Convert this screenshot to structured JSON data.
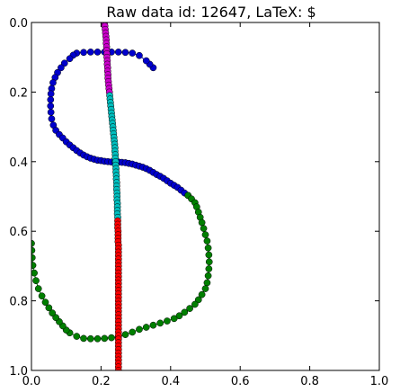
{
  "chart_data": {
    "type": "scatter",
    "title": "Raw data id: 12647, LaTeX: $",
    "xlabel": "",
    "ylabel": "",
    "xlim": [
      0.0,
      1.0
    ],
    "ylim": [
      0.0,
      1.0
    ],
    "y_inverted": true,
    "grid": false,
    "x_ticks": [
      {
        "value": 0.0,
        "label": "0.0"
      },
      {
        "value": 0.2,
        "label": "0.2"
      },
      {
        "value": 0.4,
        "label": "0.4"
      },
      {
        "value": 0.6,
        "label": "0.6"
      },
      {
        "value": 0.8,
        "label": "0.8"
      },
      {
        "value": 1.0,
        "label": "1.0"
      }
    ],
    "y_ticks": [
      {
        "value": 0.0,
        "label": "0.0"
      },
      {
        "value": 0.2,
        "label": "0.2"
      },
      {
        "value": 0.4,
        "label": "0.4"
      },
      {
        "value": 0.6,
        "label": "0.6"
      },
      {
        "value": 0.8,
        "label": "0.8"
      },
      {
        "value": 1.0,
        "label": "1.0"
      }
    ],
    "series": [
      {
        "color": "#0000cc",
        "points": [
          [
            0.35,
            0.13
          ],
          [
            0.34,
            0.12
          ],
          [
            0.33,
            0.11
          ],
          [
            0.31,
            0.095
          ],
          [
            0.29,
            0.088
          ],
          [
            0.27,
            0.086
          ],
          [
            0.25,
            0.085
          ],
          [
            0.23,
            0.085
          ],
          [
            0.21,
            0.085
          ],
          [
            0.19,
            0.085
          ],
          [
            0.17,
            0.085
          ],
          [
            0.15,
            0.086
          ],
          [
            0.13,
            0.088
          ],
          [
            0.12,
            0.094
          ],
          [
            0.11,
            0.104
          ],
          [
            0.095,
            0.117
          ],
          [
            0.085,
            0.13
          ],
          [
            0.075,
            0.144
          ],
          [
            0.068,
            0.158
          ],
          [
            0.062,
            0.173
          ],
          [
            0.058,
            0.19
          ],
          [
            0.056,
            0.205
          ],
          [
            0.055,
            0.222
          ],
          [
            0.055,
            0.24
          ],
          [
            0.056,
            0.258
          ],
          [
            0.058,
            0.277
          ],
          [
            0.063,
            0.295
          ],
          [
            0.07,
            0.31
          ],
          [
            0.08,
            0.322
          ],
          [
            0.09,
            0.332
          ],
          [
            0.1,
            0.343
          ],
          [
            0.11,
            0.352
          ],
          [
            0.12,
            0.36
          ],
          [
            0.13,
            0.368
          ],
          [
            0.14,
            0.375
          ],
          [
            0.15,
            0.381
          ],
          [
            0.16,
            0.386
          ],
          [
            0.17,
            0.39
          ],
          [
            0.18,
            0.393
          ],
          [
            0.19,
            0.396
          ],
          [
            0.2,
            0.397
          ],
          [
            0.21,
            0.399
          ],
          [
            0.22,
            0.4
          ],
          [
            0.23,
            0.401
          ],
          [
            0.24,
            0.401
          ],
          [
            0.25,
            0.401
          ],
          [
            0.26,
            0.402
          ],
          [
            0.27,
            0.403
          ],
          [
            0.28,
            0.405
          ],
          [
            0.29,
            0.407
          ],
          [
            0.3,
            0.41
          ],
          [
            0.31,
            0.413
          ],
          [
            0.32,
            0.416
          ],
          [
            0.33,
            0.42
          ],
          [
            0.34,
            0.425
          ],
          [
            0.35,
            0.431
          ],
          [
            0.36,
            0.437
          ],
          [
            0.37,
            0.442
          ],
          [
            0.38,
            0.448
          ],
          [
            0.39,
            0.455
          ],
          [
            0.4,
            0.462
          ],
          [
            0.41,
            0.468
          ],
          [
            0.42,
            0.474
          ],
          [
            0.43,
            0.482
          ],
          [
            0.44,
            0.49
          ],
          [
            0.45,
            0.497
          ]
        ]
      },
      {
        "color": "#007f00",
        "points": [
          [
            0.45,
            0.497
          ],
          [
            0.46,
            0.507
          ],
          [
            0.47,
            0.518
          ],
          [
            0.475,
            0.53
          ],
          [
            0.48,
            0.545
          ],
          [
            0.485,
            0.56
          ],
          [
            0.49,
            0.575
          ],
          [
            0.495,
            0.592
          ],
          [
            0.5,
            0.61
          ],
          [
            0.505,
            0.628
          ],
          [
            0.508,
            0.648
          ],
          [
            0.51,
            0.668
          ],
          [
            0.511,
            0.688
          ],
          [
            0.51,
            0.708
          ],
          [
            0.508,
            0.728
          ],
          [
            0.505,
            0.748
          ],
          [
            0.5,
            0.765
          ],
          [
            0.49,
            0.782
          ],
          [
            0.48,
            0.797
          ],
          [
            0.47,
            0.81
          ],
          [
            0.455,
            0.822
          ],
          [
            0.44,
            0.833
          ],
          [
            0.425,
            0.843
          ],
          [
            0.41,
            0.851
          ],
          [
            0.39,
            0.858
          ],
          [
            0.37,
            0.864
          ],
          [
            0.35,
            0.87
          ],
          [
            0.33,
            0.876
          ],
          [
            0.31,
            0.882
          ],
          [
            0.29,
            0.89
          ],
          [
            0.27,
            0.897
          ],
          [
            0.25,
            0.903
          ],
          [
            0.23,
            0.906
          ],
          [
            0.21,
            0.908
          ],
          [
            0.19,
            0.909
          ],
          [
            0.17,
            0.909
          ],
          [
            0.15,
            0.908
          ],
          [
            0.13,
            0.902
          ],
          [
            0.11,
            0.892
          ],
          [
            0.1,
            0.884
          ],
          [
            0.09,
            0.872
          ],
          [
            0.08,
            0.86
          ],
          [
            0.07,
            0.848
          ],
          [
            0.06,
            0.835
          ],
          [
            0.05,
            0.82
          ],
          [
            0.04,
            0.804
          ],
          [
            0.03,
            0.786
          ],
          [
            0.02,
            0.765
          ],
          [
            0.013,
            0.742
          ],
          [
            0.008,
            0.72
          ],
          [
            0.004,
            0.698
          ],
          [
            0.002,
            0.676
          ],
          [
            0.001,
            0.655
          ],
          [
            0.0,
            0.635
          ]
        ]
      },
      {
        "color": "#cc00cc",
        "points": [
          [
            0.21,
            0.0
          ],
          [
            0.211,
            0.01
          ],
          [
            0.212,
            0.02
          ],
          [
            0.213,
            0.03
          ],
          [
            0.214,
            0.04
          ],
          [
            0.215,
            0.05
          ],
          [
            0.215,
            0.06
          ],
          [
            0.216,
            0.07
          ],
          [
            0.216,
            0.08
          ],
          [
            0.217,
            0.09
          ],
          [
            0.217,
            0.1
          ],
          [
            0.218,
            0.11
          ],
          [
            0.218,
            0.12
          ],
          [
            0.219,
            0.13
          ],
          [
            0.219,
            0.14
          ],
          [
            0.22,
            0.15
          ],
          [
            0.22,
            0.16
          ],
          [
            0.221,
            0.17
          ],
          [
            0.222,
            0.18
          ],
          [
            0.223,
            0.19
          ],
          [
            0.224,
            0.2
          ]
        ]
      },
      {
        "color": "#00bfbf",
        "points": [
          [
            0.225,
            0.21
          ],
          [
            0.226,
            0.22
          ],
          [
            0.227,
            0.23
          ],
          [
            0.228,
            0.24
          ],
          [
            0.229,
            0.25
          ],
          [
            0.23,
            0.26
          ],
          [
            0.231,
            0.27
          ],
          [
            0.232,
            0.28
          ],
          [
            0.233,
            0.29
          ],
          [
            0.234,
            0.3
          ],
          [
            0.235,
            0.31
          ],
          [
            0.236,
            0.32
          ],
          [
            0.237,
            0.33
          ],
          [
            0.238,
            0.34
          ],
          [
            0.239,
            0.35
          ],
          [
            0.24,
            0.36
          ],
          [
            0.24,
            0.37
          ],
          [
            0.241,
            0.38
          ],
          [
            0.241,
            0.39
          ],
          [
            0.242,
            0.4
          ],
          [
            0.242,
            0.41
          ],
          [
            0.243,
            0.42
          ],
          [
            0.243,
            0.43
          ],
          [
            0.244,
            0.44
          ],
          [
            0.244,
            0.45
          ],
          [
            0.245,
            0.46
          ],
          [
            0.245,
            0.47
          ],
          [
            0.245,
            0.48
          ],
          [
            0.246,
            0.49
          ],
          [
            0.246,
            0.5
          ],
          [
            0.246,
            0.51
          ],
          [
            0.247,
            0.52
          ],
          [
            0.247,
            0.53
          ],
          [
            0.247,
            0.54
          ],
          [
            0.247,
            0.55
          ],
          [
            0.248,
            0.56
          ]
        ]
      },
      {
        "color": "#ff0000",
        "points": [
          [
            0.248,
            0.57
          ],
          [
            0.248,
            0.58
          ],
          [
            0.248,
            0.59
          ],
          [
            0.249,
            0.6
          ],
          [
            0.249,
            0.61
          ],
          [
            0.249,
            0.62
          ],
          [
            0.249,
            0.63
          ],
          [
            0.25,
            0.64
          ],
          [
            0.25,
            0.65
          ],
          [
            0.25,
            0.66
          ],
          [
            0.25,
            0.67
          ],
          [
            0.25,
            0.68
          ],
          [
            0.25,
            0.69
          ],
          [
            0.25,
            0.7
          ],
          [
            0.25,
            0.71
          ],
          [
            0.25,
            0.72
          ],
          [
            0.25,
            0.73
          ],
          [
            0.25,
            0.74
          ],
          [
            0.25,
            0.75
          ],
          [
            0.25,
            0.76
          ],
          [
            0.25,
            0.77
          ],
          [
            0.25,
            0.78
          ],
          [
            0.25,
            0.79
          ],
          [
            0.25,
            0.8
          ],
          [
            0.25,
            0.81
          ],
          [
            0.25,
            0.82
          ],
          [
            0.25,
            0.83
          ],
          [
            0.25,
            0.84
          ],
          [
            0.25,
            0.85
          ],
          [
            0.25,
            0.86
          ],
          [
            0.25,
            0.87
          ],
          [
            0.25,
            0.88
          ],
          [
            0.25,
            0.89
          ],
          [
            0.25,
            0.9
          ],
          [
            0.25,
            0.91
          ],
          [
            0.25,
            0.92
          ],
          [
            0.25,
            0.93
          ],
          [
            0.25,
            0.94
          ],
          [
            0.25,
            0.95
          ],
          [
            0.25,
            0.96
          ],
          [
            0.25,
            0.97
          ],
          [
            0.25,
            0.98
          ],
          [
            0.25,
            0.99
          ],
          [
            0.25,
            1.0
          ]
        ]
      }
    ]
  }
}
